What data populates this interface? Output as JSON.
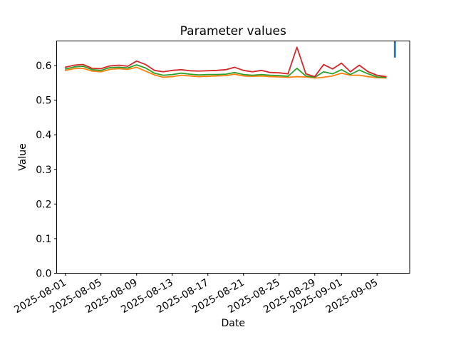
{
  "chart_data": {
    "type": "line",
    "title": "Parameter values",
    "xlabel": "Date",
    "ylabel": "Value",
    "grid": false,
    "legend_position": "none",
    "axis_color": "#000000",
    "background_color": "#ffffff",
    "ylim": [
      0.0,
      0.671
    ],
    "y_ticks": [
      0.0,
      0.1,
      0.2,
      0.3,
      0.4,
      0.5,
      0.6
    ],
    "y_tick_labels": [
      "0.0",
      "0.1",
      "0.2",
      "0.3",
      "0.4",
      "0.5",
      "0.6"
    ],
    "x_ticks": [
      "2025-08-01",
      "2025-08-05",
      "2025-08-09",
      "2025-08-13",
      "2025-08-17",
      "2025-08-21",
      "2025-08-25",
      "2025-08-29",
      "2025-09-01",
      "2025-09-05"
    ],
    "x": [
      "2025-08-01",
      "2025-08-02",
      "2025-08-03",
      "2025-08-04",
      "2025-08-05",
      "2025-08-06",
      "2025-08-07",
      "2025-08-08",
      "2025-08-09",
      "2025-08-10",
      "2025-08-11",
      "2025-08-12",
      "2025-08-13",
      "2025-08-14",
      "2025-08-15",
      "2025-08-16",
      "2025-08-17",
      "2025-08-18",
      "2025-08-19",
      "2025-08-20",
      "2025-08-21",
      "2025-08-22",
      "2025-08-23",
      "2025-08-24",
      "2025-08-25",
      "2025-08-26",
      "2025-08-27",
      "2025-08-28",
      "2025-08-29",
      "2025-08-30",
      "2025-08-31",
      "2025-09-01",
      "2025-09-02",
      "2025-09-03",
      "2025-09-04",
      "2025-09-05",
      "2025-09-06"
    ],
    "series": [
      {
        "name": "red-series",
        "color": "#d62728",
        "values": [
          0.595,
          0.601,
          0.603,
          0.592,
          0.591,
          0.599,
          0.601,
          0.598,
          0.613,
          0.603,
          0.586,
          0.582,
          0.586,
          0.588,
          0.585,
          0.584,
          0.585,
          0.586,
          0.588,
          0.595,
          0.586,
          0.582,
          0.586,
          0.58,
          0.579,
          0.576,
          0.653,
          0.576,
          0.568,
          0.603,
          0.59,
          0.607,
          0.582,
          0.601,
          0.582,
          0.572,
          0.568
        ]
      },
      {
        "name": "green-series",
        "color": "#2ca02c",
        "values": [
          0.59,
          0.596,
          0.598,
          0.588,
          0.586,
          0.594,
          0.595,
          0.593,
          0.602,
          0.593,
          0.578,
          0.572,
          0.574,
          0.578,
          0.575,
          0.573,
          0.574,
          0.574,
          0.575,
          0.58,
          0.574,
          0.572,
          0.574,
          0.572,
          0.571,
          0.569,
          0.592,
          0.57,
          0.566,
          0.582,
          0.576,
          0.588,
          0.574,
          0.587,
          0.576,
          0.567,
          0.566
        ]
      },
      {
        "name": "orange-series",
        "color": "#ff7f0e",
        "values": [
          0.586,
          0.591,
          0.592,
          0.584,
          0.582,
          0.589,
          0.591,
          0.589,
          0.595,
          0.584,
          0.573,
          0.566,
          0.568,
          0.572,
          0.57,
          0.568,
          0.569,
          0.57,
          0.571,
          0.575,
          0.57,
          0.569,
          0.57,
          0.568,
          0.567,
          0.566,
          0.568,
          0.567,
          0.564,
          0.566,
          0.57,
          0.578,
          0.572,
          0.572,
          0.568,
          0.565,
          0.564
        ]
      }
    ],
    "vertical_marker": {
      "x": "2025-09-07",
      "y_from": 0.623,
      "y_to": 0.67,
      "color": "#1f77b4"
    }
  }
}
